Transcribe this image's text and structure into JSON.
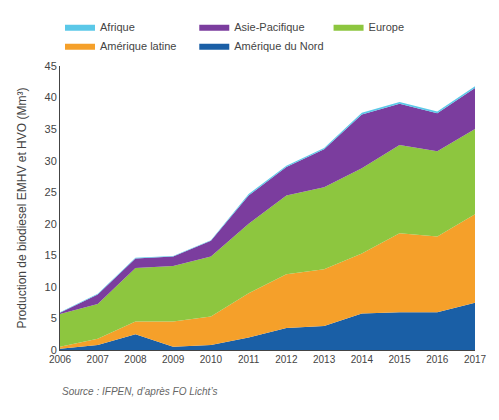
{
  "chart_data": {
    "type": "area",
    "stacked": true,
    "x": [
      2006,
      2007,
      2008,
      2009,
      2010,
      2011,
      2012,
      2013,
      2014,
      2015,
      2016,
      2017
    ],
    "series": [
      {
        "name": "Amérique du Nord",
        "color": "#1a5fa6",
        "values": [
          0.2,
          0.8,
          2.5,
          0.5,
          0.8,
          2.0,
          3.5,
          3.8,
          5.8,
          6.0,
          6.0,
          7.5
        ]
      },
      {
        "name": "Amérique latine",
        "color": "#f5a02a",
        "values": [
          0.3,
          1.0,
          2.0,
          4.0,
          4.5,
          7.0,
          8.5,
          9.0,
          9.5,
          12.5,
          12.0,
          14.0
        ]
      },
      {
        "name": "Europe",
        "color": "#8dc63f",
        "values": [
          5.2,
          5.5,
          8.5,
          8.8,
          9.5,
          11.0,
          12.5,
          13.0,
          13.5,
          14.0,
          13.5,
          13.5
        ]
      },
      {
        "name": "Asie-Pacifique",
        "color": "#7b3d9e",
        "values": [
          0.2,
          1.5,
          1.5,
          1.5,
          2.5,
          4.5,
          4.5,
          6.0,
          8.5,
          6.5,
          6.0,
          6.5
        ]
      },
      {
        "name": "Afrique",
        "color": "#5bc8e8",
        "values": [
          0.1,
          0.1,
          0.1,
          0.1,
          0.1,
          0.2,
          0.2,
          0.2,
          0.3,
          0.3,
          0.3,
          0.3
        ]
      }
    ],
    "ylabel": "Production de biodiesel EMHV et HVO (Mm³)",
    "xlim": [
      2006,
      2017
    ],
    "xticks": [
      2006,
      2007,
      2008,
      2009,
      2010,
      2011,
      2012,
      2013,
      2014,
      2015,
      2016,
      2017
    ],
    "ylim": [
      0,
      45
    ],
    "yticks": [
      0,
      5,
      10,
      15,
      20,
      25,
      30,
      35,
      40,
      45
    ],
    "grid": false,
    "legend": "upper left",
    "annotations": [
      "Source : IFPEN, d’après FO Licht’s"
    ]
  }
}
